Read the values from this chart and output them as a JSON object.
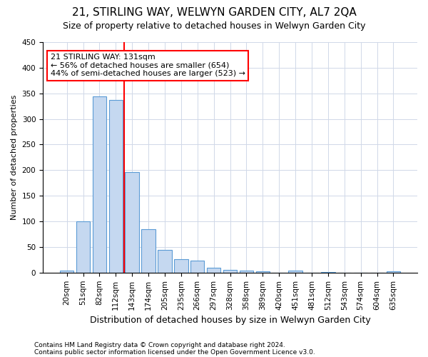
{
  "title": "21, STIRLING WAY, WELWYN GARDEN CITY, AL7 2QA",
  "subtitle": "Size of property relative to detached houses in Welwyn Garden City",
  "xlabel": "Distribution of detached houses by size in Welwyn Garden City",
  "ylabel": "Number of detached properties",
  "footnote1": "Contains HM Land Registry data © Crown copyright and database right 2024.",
  "footnote2": "Contains public sector information licensed under the Open Government Licence v3.0.",
  "bins": [
    "20sqm",
    "51sqm",
    "82sqm",
    "112sqm",
    "143sqm",
    "174sqm",
    "205sqm",
    "235sqm",
    "266sqm",
    "297sqm",
    "328sqm",
    "358sqm",
    "389sqm",
    "420sqm",
    "451sqm",
    "481sqm",
    "512sqm",
    "543sqm",
    "574sqm",
    "604sqm",
    "635sqm"
  ],
  "values": [
    4,
    100,
    344,
    337,
    196,
    85,
    44,
    26,
    24,
    9,
    6,
    4,
    3,
    0,
    4,
    0,
    1,
    0,
    0,
    0,
    3
  ],
  "bar_color": "#c5d8f0",
  "bar_edge_color": "#5b9bd5",
  "property_label": "21 STIRLING WAY: 131sqm",
  "pct_smaller": 56,
  "count_smaller": 654,
  "pct_larger_semi": 44,
  "count_larger_semi": 523,
  "vline_x_index": 3.5,
  "ylim": [
    0,
    450
  ],
  "yticks": [
    0,
    50,
    100,
    150,
    200,
    250,
    300,
    350,
    400,
    450
  ],
  "grid_color": "#d0d8e8",
  "title_fontsize": 11,
  "subtitle_fontsize": 9,
  "xlabel_fontsize": 9,
  "ylabel_fontsize": 8,
  "tick_fontsize": 7.5,
  "annot_fontsize": 8
}
